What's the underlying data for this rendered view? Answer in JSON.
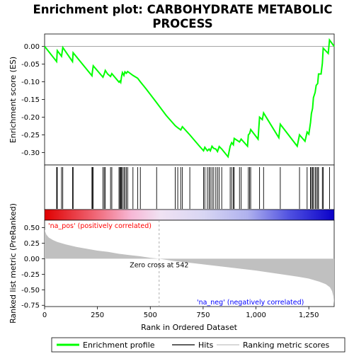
{
  "chart_data": {
    "type": "line",
    "title_line1": "Enrichment plot: CARBOHYDRATE METABOLIC",
    "title_line2": "PROCESS",
    "es_panel": {
      "ylabel": "Enrichment score (ES)",
      "ylim": [
        -0.335,
        0.035
      ],
      "yticks": [
        0.0,
        -0.05,
        -0.1,
        -0.15,
        -0.2,
        -0.25,
        -0.3
      ],
      "ytick_labels": [
        "0.00",
        "-0.05",
        "-0.10",
        "-0.15",
        "-0.20",
        "-0.25",
        "-0.30"
      ],
      "series_name": "Enrichment profile",
      "color": "#00ff00",
      "points": [
        [
          0,
          0.0
        ],
        [
          57,
          -0.043
        ],
        [
          60,
          -0.012
        ],
        [
          80,
          -0.028
        ],
        [
          86,
          -0.003
        ],
        [
          132,
          -0.043
        ],
        [
          135,
          -0.018
        ],
        [
          224,
          -0.083
        ],
        [
          226,
          -0.072
        ],
        [
          230,
          -0.055
        ],
        [
          276,
          -0.087
        ],
        [
          282,
          -0.078
        ],
        [
          287,
          -0.068
        ],
        [
          298,
          -0.078
        ],
        [
          312,
          -0.085
        ],
        [
          318,
          -0.077
        ],
        [
          352,
          -0.101
        ],
        [
          356,
          -0.098
        ],
        [
          360,
          -0.102
        ],
        [
          364,
          -0.085
        ],
        [
          368,
          -0.074
        ],
        [
          375,
          -0.082
        ],
        [
          380,
          -0.072
        ],
        [
          387,
          -0.076
        ],
        [
          393,
          -0.071
        ],
        [
          418,
          -0.082
        ],
        [
          440,
          -0.09
        ],
        [
          453,
          -0.1
        ],
        [
          480,
          -0.12
        ],
        [
          525,
          -0.155
        ],
        [
          575,
          -0.195
        ],
        [
          618,
          -0.224
        ],
        [
          630,
          -0.23
        ],
        [
          644,
          -0.236
        ],
        [
          652,
          -0.227
        ],
        [
          687,
          -0.25
        ],
        [
          730,
          -0.28
        ],
        [
          752,
          -0.295
        ],
        [
          758,
          -0.285
        ],
        [
          770,
          -0.295
        ],
        [
          778,
          -0.29
        ],
        [
          784,
          -0.295
        ],
        [
          792,
          -0.282
        ],
        [
          800,
          -0.288
        ],
        [
          810,
          -0.29
        ],
        [
          818,
          -0.297
        ],
        [
          826,
          -0.283
        ],
        [
          838,
          -0.29
        ],
        [
          868,
          -0.312
        ],
        [
          878,
          -0.282
        ],
        [
          885,
          -0.272
        ],
        [
          893,
          -0.278
        ],
        [
          897,
          -0.26
        ],
        [
          922,
          -0.27
        ],
        [
          930,
          -0.262
        ],
        [
          960,
          -0.282
        ],
        [
          964,
          -0.25
        ],
        [
          970,
          -0.246
        ],
        [
          975,
          -0.235
        ],
        [
          1010,
          -0.262
        ],
        [
          1017,
          -0.2
        ],
        [
          1030,
          -0.207
        ],
        [
          1036,
          -0.188
        ],
        [
          1108,
          -0.258
        ],
        [
          1115,
          -0.22
        ],
        [
          1195,
          -0.282
        ],
        [
          1206,
          -0.25
        ],
        [
          1232,
          -0.268
        ],
        [
          1242,
          -0.242
        ],
        [
          1250,
          -0.248
        ],
        [
          1258,
          -0.215
        ],
        [
          1262,
          -0.19
        ],
        [
          1268,
          -0.175
        ],
        [
          1272,
          -0.145
        ],
        [
          1280,
          -0.13
        ],
        [
          1285,
          -0.11
        ],
        [
          1292,
          -0.105
        ],
        [
          1296,
          -0.078
        ],
        [
          1308,
          -0.078
        ],
        [
          1314,
          -0.048
        ],
        [
          1318,
          -0.005
        ],
        [
          1342,
          -0.02
        ],
        [
          1348,
          0.018
        ],
        [
          1370,
          0.0
        ]
      ]
    },
    "hits": [
      {
        "rank": 57
      },
      {
        "rank": 60
      },
      {
        "rank": 80
      },
      {
        "rank": 86
      },
      {
        "rank": 132
      },
      {
        "rank": 135
      },
      {
        "rank": 224
      },
      {
        "rank": 226
      },
      {
        "rank": 230
      },
      {
        "rank": 276
      },
      {
        "rank": 282
      },
      {
        "rank": 287
      },
      {
        "rank": 312
      },
      {
        "rank": 318
      },
      {
        "rank": 352
      },
      {
        "rank": 356
      },
      {
        "rank": 360
      },
      {
        "rank": 364
      },
      {
        "rank": 368
      },
      {
        "rank": 375
      },
      {
        "rank": 380
      },
      {
        "rank": 387
      },
      {
        "rank": 393
      },
      {
        "rank": 418
      },
      {
        "rank": 440
      },
      {
        "rank": 453
      },
      {
        "rank": 530
      },
      {
        "rank": 618
      },
      {
        "rank": 630
      },
      {
        "rank": 644
      },
      {
        "rank": 652
      },
      {
        "rank": 687
      },
      {
        "rank": 752
      },
      {
        "rank": 758
      },
      {
        "rank": 770
      },
      {
        "rank": 778
      },
      {
        "rank": 784
      },
      {
        "rank": 792
      },
      {
        "rank": 800
      },
      {
        "rank": 810
      },
      {
        "rank": 818
      },
      {
        "rank": 826
      },
      {
        "rank": 838
      },
      {
        "rank": 878
      },
      {
        "rank": 885
      },
      {
        "rank": 893
      },
      {
        "rank": 897
      },
      {
        "rank": 922
      },
      {
        "rank": 930
      },
      {
        "rank": 964
      },
      {
        "rank": 970
      },
      {
        "rank": 975
      },
      {
        "rank": 1017
      },
      {
        "rank": 1036
      },
      {
        "rank": 1115
      },
      {
        "rank": 1206
      },
      {
        "rank": 1242
      },
      {
        "rank": 1258
      },
      {
        "rank": 1262
      },
      {
        "rank": 1268
      },
      {
        "rank": 1272
      },
      {
        "rank": 1280
      },
      {
        "rank": 1285
      },
      {
        "rank": 1292
      },
      {
        "rank": 1296
      },
      {
        "rank": 1314
      },
      {
        "rank": 1318
      },
      {
        "rank": 1348
      }
    ],
    "ranked_panel": {
      "ylabel": "Ranked list metric (PreRanked)",
      "ylim": [
        -0.77,
        0.62
      ],
      "yticks": [
        0.5,
        0.25,
        0.0,
        -0.25,
        -0.5,
        -0.75
      ],
      "ytick_labels": [
        "0.50",
        "0.25",
        "0.00",
        "-0.25",
        "-0.50",
        "-0.75"
      ],
      "fill_color": "#c0c0c0",
      "metric_curve": [
        [
          0,
          0.47
        ],
        [
          8,
          0.39
        ],
        [
          20,
          0.34
        ],
        [
          40,
          0.3
        ],
        [
          60,
          0.27
        ],
        [
          100,
          0.23
        ],
        [
          150,
          0.19
        ],
        [
          200,
          0.16
        ],
        [
          250,
          0.13
        ],
        [
          300,
          0.11
        ],
        [
          350,
          0.08
        ],
        [
          400,
          0.06
        ],
        [
          450,
          0.04
        ],
        [
          500,
          0.015
        ],
        [
          542,
          0.0
        ],
        [
          600,
          -0.03
        ],
        [
          700,
          -0.07
        ],
        [
          800,
          -0.11
        ],
        [
          900,
          -0.15
        ],
        [
          1000,
          -0.19
        ],
        [
          1100,
          -0.24
        ],
        [
          1200,
          -0.29
        ],
        [
          1250,
          -0.32
        ],
        [
          1300,
          -0.37
        ],
        [
          1330,
          -0.41
        ],
        [
          1350,
          -0.46
        ],
        [
          1360,
          -0.52
        ],
        [
          1366,
          -0.6
        ],
        [
          1370,
          -0.73
        ]
      ],
      "zero_cross": 542,
      "zero_cross_label": "Zero cross at 542",
      "pos_label": "'na_pos' (positively correlated)",
      "pos_color": "#ff0000",
      "neg_label": "'na_neg' (negatively correlated)",
      "neg_color": "#0000ff"
    },
    "xaxis": {
      "xlabel": "Rank in Ordered Dataset",
      "xlim": [
        0,
        1370
      ],
      "xticks": [
        0,
        250,
        500,
        750,
        1000,
        1250
      ],
      "xtick_labels": [
        "0",
        "250",
        "500",
        "750",
        "1,000",
        "1,250"
      ]
    },
    "legend": {
      "placement": "bottom",
      "items": [
        {
          "label": "Enrichment profile",
          "color": "#00ff00"
        },
        {
          "label": "Hits",
          "color": "#000000"
        },
        {
          "label": "Ranking metric scores",
          "color": "#c0c0c0"
        }
      ]
    }
  }
}
